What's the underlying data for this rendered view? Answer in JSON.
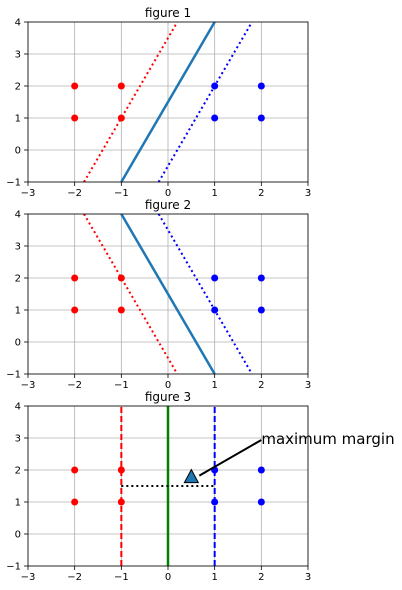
{
  "chart_data": [
    {
      "type": "scatter",
      "title": "figure 1",
      "xlim": [
        -3,
        3
      ],
      "ylim": [
        -1,
        4
      ],
      "xticks": [
        "−3",
        "−2",
        "−1",
        "0",
        "1",
        "2",
        "3"
      ],
      "yticks": [
        "−1",
        "0",
        "1",
        "2",
        "3",
        "4"
      ],
      "xtick_values": [
        -3,
        -2,
        -1,
        0,
        1,
        2,
        3
      ],
      "ytick_values": [
        -1,
        0,
        1,
        2,
        3,
        4
      ],
      "grid": true,
      "series": [
        {
          "color": "#ff0000",
          "points": [
            [
              -2,
              1
            ],
            [
              -2,
              2
            ],
            [
              -1,
              1
            ],
            [
              -1,
              2
            ]
          ]
        },
        {
          "color": "#0000ff",
          "points": [
            [
              1,
              1
            ],
            [
              1,
              2
            ],
            [
              2,
              1
            ],
            [
              2,
              2
            ]
          ]
        }
      ],
      "lines": [
        {
          "points": [
            [
              -1.8,
              -1
            ],
            [
              0.2,
              4
            ]
          ],
          "color": "#ff0000",
          "style": "dotted"
        },
        {
          "points": [
            [
              -1,
              -1
            ],
            [
              1,
              4
            ]
          ],
          "color": "#1f77b4",
          "style": "solid"
        },
        {
          "points": [
            [
              -0.2,
              -1
            ],
            [
              1.8,
              4
            ]
          ],
          "color": "#0000ff",
          "style": "dotted"
        }
      ]
    },
    {
      "type": "scatter",
      "title": "figure 2",
      "xlim": [
        -3,
        3
      ],
      "ylim": [
        -1,
        4
      ],
      "xticks": [
        "−3",
        "−2",
        "−1",
        "0",
        "1",
        "2",
        "3"
      ],
      "yticks": [
        "−1",
        "0",
        "1",
        "2",
        "3",
        "4"
      ],
      "xtick_values": [
        -3,
        -2,
        -1,
        0,
        1,
        2,
        3
      ],
      "ytick_values": [
        -1,
        0,
        1,
        2,
        3,
        4
      ],
      "grid": true,
      "series": [
        {
          "color": "#ff0000",
          "points": [
            [
              -2,
              1
            ],
            [
              -2,
              2
            ],
            [
              -1,
              1
            ],
            [
              -1,
              2
            ]
          ]
        },
        {
          "color": "#0000ff",
          "points": [
            [
              1,
              1
            ],
            [
              1,
              2
            ],
            [
              2,
              1
            ],
            [
              2,
              2
            ]
          ]
        }
      ],
      "lines": [
        {
          "points": [
            [
              -1.8,
              4
            ],
            [
              0.2,
              -1
            ]
          ],
          "color": "#ff0000",
          "style": "dotted"
        },
        {
          "points": [
            [
              -1,
              4
            ],
            [
              1,
              -1
            ]
          ],
          "color": "#1f77b4",
          "style": "solid"
        },
        {
          "points": [
            [
              -0.2,
              4
            ],
            [
              1.8,
              -1
            ]
          ],
          "color": "#0000ff",
          "style": "dotted"
        }
      ]
    },
    {
      "type": "scatter",
      "title": "figure 3",
      "xlim": [
        -3,
        3
      ],
      "ylim": [
        -1,
        4
      ],
      "xticks": [
        "−3",
        "−2",
        "−1",
        "0",
        "1",
        "2",
        "3"
      ],
      "yticks": [
        "−1",
        "0",
        "1",
        "2",
        "3",
        "4"
      ],
      "xtick_values": [
        -3,
        -2,
        -1,
        0,
        1,
        2,
        3
      ],
      "ytick_values": [
        -1,
        0,
        1,
        2,
        3,
        4
      ],
      "grid": true,
      "series": [
        {
          "color": "#ff0000",
          "points": [
            [
              -2,
              1
            ],
            [
              -2,
              2
            ],
            [
              -1,
              1
            ],
            [
              -1,
              2
            ]
          ]
        },
        {
          "color": "#0000ff",
          "points": [
            [
              1,
              1
            ],
            [
              1,
              2
            ],
            [
              2,
              1
            ],
            [
              2,
              2
            ]
          ]
        }
      ],
      "lines": [
        {
          "points": [
            [
              -1,
              -1
            ],
            [
              -1,
              4
            ]
          ],
          "color": "#ff0000",
          "style": "dashed"
        },
        {
          "points": [
            [
              0,
              -1
            ],
            [
              0,
              4
            ]
          ],
          "color": "#008000",
          "style": "solid"
        },
        {
          "points": [
            [
              1,
              -1
            ],
            [
              1,
              4
            ]
          ],
          "color": "#0000ff",
          "style": "dashed"
        },
        {
          "points": [
            [
              -1,
              1.5
            ],
            [
              1,
              1.5
            ]
          ],
          "color": "#000000",
          "style": "dotted"
        }
      ],
      "annotation": {
        "text": "maximum margin",
        "xy": [
          0.5,
          1.7
        ],
        "xytext": [
          2,
          3
        ]
      }
    }
  ]
}
